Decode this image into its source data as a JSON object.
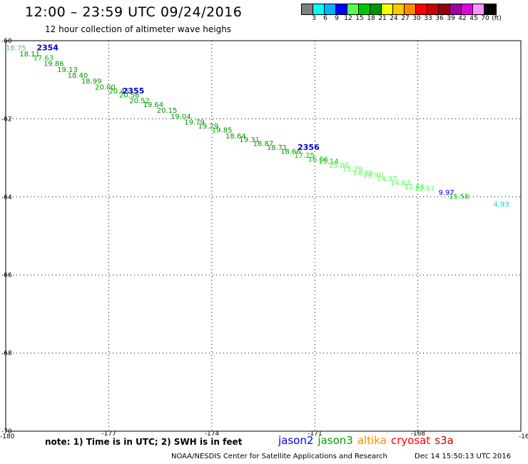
{
  "header": {
    "title": "12:00 – 23:59 UTC 09/24/2016",
    "subtitle": "12 hour collection of altimeter wave heighs"
  },
  "legend": {
    "colors": [
      "#7f7f7f",
      "#00ffff",
      "#00b4ff",
      "#0000ff",
      "#54ff54",
      "#00c800",
      "#009600",
      "#ffff00",
      "#ffc800",
      "#ff8c00",
      "#ff0000",
      "#c80000",
      "#960000",
      "#a000a0",
      "#e000e0",
      "#ff96ff",
      "#000000"
    ],
    "labels": [
      "3",
      "6",
      "9",
      "12",
      "15",
      "18",
      "21",
      "24",
      "27",
      "30",
      "33",
      "36",
      "39",
      "42",
      "45",
      "70"
    ],
    "unit": "(ft)"
  },
  "axes": {
    "x_ticks": [
      "-180",
      "-177",
      "-174",
      "-171",
      "-168",
      "-16"
    ],
    "y_ticks": [
      "-60",
      "-62",
      "-64",
      "-66",
      "-68",
      "-70"
    ]
  },
  "chart_data": {
    "type": "scatter",
    "xlim": [
      -180,
      -165
    ],
    "ylim": [
      -70,
      -60
    ],
    "x_axis_reversed": false,
    "grid": true,
    "points": [
      {
        "lon": -180.0,
        "lat": -60.25,
        "value": "18.75",
        "color": "#54c854"
      },
      {
        "lon": -179.6,
        "lat": -60.4,
        "value": "18.11",
        "color": "#009600"
      },
      {
        "lon": -179.2,
        "lat": -60.5,
        "value": "17.63",
        "color": "#00c800"
      },
      {
        "lon": -178.9,
        "lat": -60.65,
        "value": "19.86",
        "color": "#009600"
      },
      {
        "lon": -178.5,
        "lat": -60.8,
        "value": "19.13",
        "color": "#009600"
      },
      {
        "lon": -178.2,
        "lat": -60.95,
        "value": "18.40",
        "color": "#009600"
      },
      {
        "lon": -177.8,
        "lat": -61.1,
        "value": "18.99",
        "color": "#009600"
      },
      {
        "lon": -177.4,
        "lat": -61.25,
        "value": "20.00",
        "color": "#009600"
      },
      {
        "lon": -177.0,
        "lat": -61.35,
        "value": "20.45",
        "color": "#009600"
      },
      {
        "lon": -176.7,
        "lat": -61.45,
        "value": "20.56",
        "color": "#009600"
      },
      {
        "lon": -176.4,
        "lat": -61.6,
        "value": "20.52",
        "color": "#009600"
      },
      {
        "lon": -176.0,
        "lat": -61.7,
        "value": "19.64",
        "color": "#009600"
      },
      {
        "lon": -175.6,
        "lat": -61.85,
        "value": "20.15",
        "color": "#009600"
      },
      {
        "lon": -175.2,
        "lat": -62.0,
        "value": "19.04",
        "color": "#009600"
      },
      {
        "lon": -174.8,
        "lat": -62.15,
        "value": "19.79",
        "color": "#009600"
      },
      {
        "lon": -174.4,
        "lat": -62.25,
        "value": "19.29",
        "color": "#009600"
      },
      {
        "lon": -174.0,
        "lat": -62.35,
        "value": "19.85",
        "color": "#009600"
      },
      {
        "lon": -173.6,
        "lat": -62.5,
        "value": "18.64",
        "color": "#009600"
      },
      {
        "lon": -173.2,
        "lat": -62.6,
        "value": "19.31",
        "color": "#009600"
      },
      {
        "lon": -172.8,
        "lat": -62.7,
        "value": "18.87",
        "color": "#009600"
      },
      {
        "lon": -172.4,
        "lat": -62.8,
        "value": "18.71",
        "color": "#009600"
      },
      {
        "lon": -172.0,
        "lat": -62.9,
        "value": "18.66",
        "color": "#009600"
      },
      {
        "lon": -171.6,
        "lat": -63.0,
        "value": "17.25",
        "color": "#00c800"
      },
      {
        "lon": -171.2,
        "lat": -63.1,
        "value": "16.56",
        "color": "#00c800"
      },
      {
        "lon": -170.9,
        "lat": -63.15,
        "value": "15.14",
        "color": "#00c800"
      },
      {
        "lon": -170.6,
        "lat": -63.25,
        "value": "15.86",
        "color": "#54ff54"
      },
      {
        "lon": -170.2,
        "lat": -63.35,
        "value": "15.39",
        "color": "#54ff54"
      },
      {
        "lon": -169.9,
        "lat": -63.45,
        "value": "14.39",
        "color": "#54ff54"
      },
      {
        "lon": -169.6,
        "lat": -63.5,
        "value": "14.90",
        "color": "#54ff54"
      },
      {
        "lon": -169.2,
        "lat": -63.6,
        "value": "14.37",
        "color": "#54ff54"
      },
      {
        "lon": -168.8,
        "lat": -63.7,
        "value": "14.63",
        "color": "#54ff54"
      },
      {
        "lon": -168.4,
        "lat": -63.8,
        "value": "12.86",
        "color": "#54ff54"
      },
      {
        "lon": -168.1,
        "lat": -63.85,
        "value": "12.97",
        "color": "#54ff54"
      },
      {
        "lon": -167.4,
        "lat": -63.95,
        "value": "9.97",
        "color": "#0000ff"
      },
      {
        "lon": -167.1,
        "lat": -64.05,
        "value": "15.58",
        "color": "#00c800"
      },
      {
        "lon": -165.8,
        "lat": -64.25,
        "value": "4.93",
        "color": "#00d8d8"
      }
    ],
    "pass_labels": [
      {
        "label": "2354",
        "lon": -179.1,
        "lat": -60.25
      },
      {
        "label": "2355",
        "lon": -176.6,
        "lat": -61.35
      },
      {
        "label": "2356",
        "lon": -171.5,
        "lat": -62.8
      }
    ]
  },
  "footer": {
    "note": "note: 1) Time is in UTC; 2) SWH is in feet",
    "satellites": [
      {
        "name": "jason2",
        "color": "#0000ff"
      },
      {
        "name": "jason3",
        "color": "#00a000"
      },
      {
        "name": "altika",
        "color": "#ff8c00"
      },
      {
        "name": "cryosat",
        "color": "#ff0000"
      },
      {
        "name": "s3a",
        "color": "#c80000"
      }
    ],
    "credit": "NOAA/NESDIS Center for Satellite Applications and Research",
    "timestamp": "Dec 14 15:50:13 UTC 2016"
  }
}
